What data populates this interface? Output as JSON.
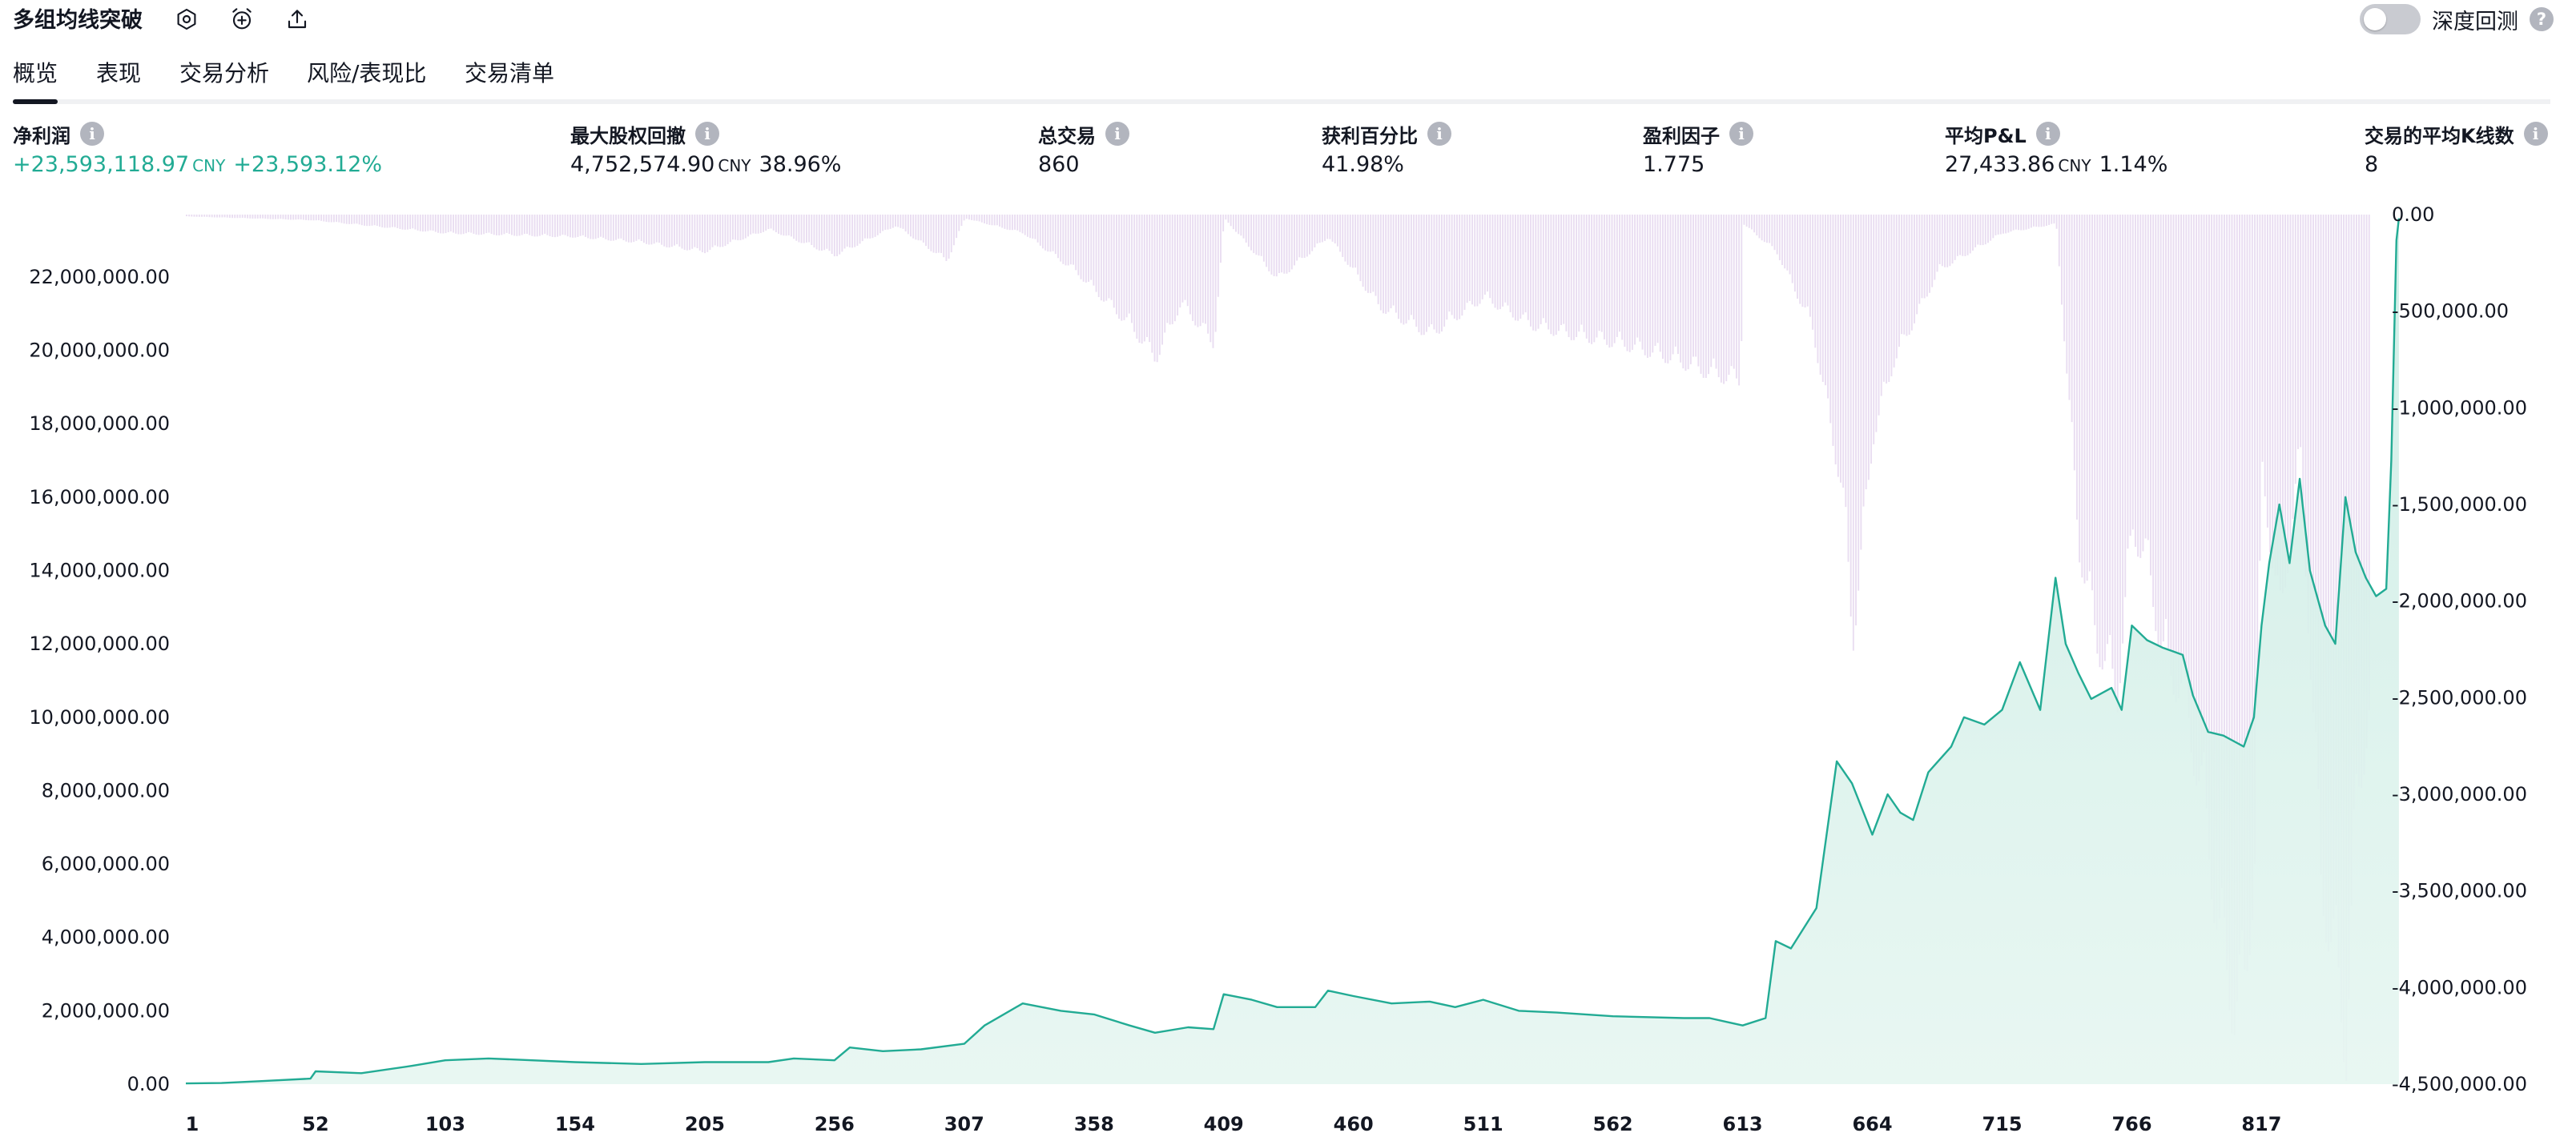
{
  "header": {
    "title": "多组均线突破",
    "deep_backtest_label": "深度回测",
    "deep_backtest_on": false
  },
  "tabs": [
    {
      "label": "概览",
      "active": true
    },
    {
      "label": "表现",
      "active": false
    },
    {
      "label": "交易分析",
      "active": false
    },
    {
      "label": "风险/表现比",
      "active": false
    },
    {
      "label": "交易清单",
      "active": false
    }
  ],
  "stats": {
    "net_profit": {
      "label": "净利润",
      "value": "+23,593,118.97",
      "unit": "CNY",
      "percent": "+23,593.12%"
    },
    "max_drawdown": {
      "label": "最大股权回撤",
      "value": "4,752,574.90",
      "unit": "CNY",
      "percent": "38.96%"
    },
    "total_trades": {
      "label": "总交易",
      "value": "860"
    },
    "percent_profitable": {
      "label": "获利百分比",
      "value": "41.98%"
    },
    "profit_factor": {
      "label": "盈利因子",
      "value": "1.775"
    },
    "avg_pnl": {
      "label": "平均P&L",
      "value": "27,433.86",
      "unit": "CNY",
      "percent": "1.14%"
    },
    "avg_bars": {
      "label": "交易的平均K线数",
      "value": "8"
    }
  },
  "colors": {
    "equity_line": "#22ab94",
    "equity_fill": "#e3f4ef",
    "drawdown_bar": "#e9ddf1",
    "drawdown_bar_overlap": "#d9dcec",
    "positive_text": "#22ab94"
  },
  "chart_data": {
    "type": "area",
    "x_tick_labels": [
      "1",
      "52",
      "103",
      "154",
      "205",
      "256",
      "307",
      "358",
      "409",
      "460",
      "511",
      "562",
      "613",
      "664",
      "715",
      "766",
      "817"
    ],
    "left_axis_labels": [
      "22,000,000.00",
      "20,000,000.00",
      "18,000,000.00",
      "16,000,000.00",
      "14,000,000.00",
      "12,000,000.00",
      "10,000,000.00",
      "8,000,000.00",
      "6,000,000.00",
      "4,000,000.00",
      "2,000,000.00",
      "0.00"
    ],
    "right_axis_labels": [
      "0.00",
      "-500,000.00",
      "-1,000,000.00",
      "-1,500,000.00",
      "-2,000,000.00",
      "-2,500,000.00",
      "-3,000,000.00",
      "-3,500,000.00",
      "-4,000,000.00",
      "-4,500,000.00"
    ],
    "left_ylim": [
      0,
      23700000
    ],
    "right_ylim": [
      -4500000,
      0
    ],
    "xlim": [
      1,
      860
    ],
    "series": [
      {
        "axis": "left",
        "points": [
          [
            1,
            20000
          ],
          [
            15,
            30000
          ],
          [
            30,
            80000
          ],
          [
            50,
            150000
          ],
          [
            52,
            350000
          ],
          [
            70,
            300000
          ],
          [
            90,
            500000
          ],
          [
            103,
            650000
          ],
          [
            120,
            700000
          ],
          [
            154,
            600000
          ],
          [
            180,
            550000
          ],
          [
            205,
            600000
          ],
          [
            230,
            600000
          ],
          [
            240,
            700000
          ],
          [
            256,
            650000
          ],
          [
            262,
            1000000
          ],
          [
            275,
            900000
          ],
          [
            290,
            950000
          ],
          [
            307,
            1100000
          ],
          [
            315,
            1600000
          ],
          [
            330,
            2200000
          ],
          [
            345,
            2000000
          ],
          [
            358,
            1900000
          ],
          [
            372,
            1600000
          ],
          [
            382,
            1400000
          ],
          [
            395,
            1550000
          ],
          [
            405,
            1500000
          ],
          [
            409,
            2450000
          ],
          [
            420,
            2300000
          ],
          [
            430,
            2100000
          ],
          [
            445,
            2100000
          ],
          [
            450,
            2550000
          ],
          [
            460,
            2400000
          ],
          [
            475,
            2200000
          ],
          [
            490,
            2250000
          ],
          [
            500,
            2100000
          ],
          [
            511,
            2300000
          ],
          [
            525,
            2000000
          ],
          [
            540,
            1950000
          ],
          [
            562,
            1850000
          ],
          [
            590,
            1800000
          ],
          [
            600,
            1800000
          ],
          [
            613,
            1600000
          ],
          [
            622,
            1800000
          ],
          [
            626,
            3900000
          ],
          [
            632,
            3700000
          ],
          [
            642,
            4800000
          ],
          [
            650,
            8800000
          ],
          [
            656,
            8200000
          ],
          [
            664,
            6800000
          ],
          [
            670,
            7900000
          ],
          [
            675,
            7400000
          ],
          [
            680,
            7200000
          ],
          [
            686,
            8500000
          ],
          [
            695,
            9200000
          ],
          [
            700,
            10000000
          ],
          [
            708,
            9800000
          ],
          [
            715,
            10200000
          ],
          [
            722,
            11500000
          ],
          [
            730,
            10200000
          ],
          [
            736,
            13800000
          ],
          [
            740,
            12000000
          ],
          [
            745,
            11200000
          ],
          [
            750,
            10500000
          ],
          [
            758,
            10800000
          ],
          [
            762,
            10200000
          ],
          [
            766,
            12500000
          ],
          [
            772,
            12100000
          ],
          [
            778,
            11900000
          ],
          [
            782,
            11800000
          ],
          [
            786,
            11700000
          ],
          [
            790,
            10600000
          ],
          [
            796,
            9600000
          ],
          [
            802,
            9500000
          ],
          [
            810,
            9200000
          ],
          [
            814,
            10000000
          ],
          [
            817,
            12500000
          ],
          [
            820,
            14200000
          ],
          [
            824,
            15800000
          ],
          [
            828,
            14200000
          ],
          [
            832,
            16500000
          ],
          [
            836,
            14000000
          ],
          [
            842,
            12500000
          ],
          [
            846,
            12000000
          ],
          [
            850,
            16000000
          ],
          [
            854,
            14500000
          ],
          [
            858,
            13800000
          ],
          [
            862,
            13300000
          ],
          [
            866,
            13500000
          ],
          [
            868,
            17000000
          ],
          [
            870,
            23000000
          ],
          [
            871,
            23600000
          ]
        ]
      },
      {
        "axis": "right",
        "points": [
          [
            1,
            -10000
          ],
          [
            50,
            -30000
          ],
          [
            103,
            -100000
          ],
          [
            154,
            -120000
          ],
          [
            180,
            -150000
          ],
          [
            205,
            -200000
          ],
          [
            230,
            -80000
          ],
          [
            256,
            -220000
          ],
          [
            280,
            -60000
          ],
          [
            300,
            -250000
          ],
          [
            307,
            -20000
          ],
          [
            330,
            -100000
          ],
          [
            350,
            -300000
          ],
          [
            372,
            -600000
          ],
          [
            382,
            -780000
          ],
          [
            392,
            -480000
          ],
          [
            405,
            -700000
          ],
          [
            409,
            -20000
          ],
          [
            430,
            -350000
          ],
          [
            450,
            -120000
          ],
          [
            470,
            -500000
          ],
          [
            490,
            -650000
          ],
          [
            511,
            -450000
          ],
          [
            530,
            -600000
          ],
          [
            545,
            -650000
          ],
          [
            565,
            -700000
          ],
          [
            585,
            -780000
          ],
          [
            600,
            -860000
          ],
          [
            612,
            -900000
          ],
          [
            613,
            -50000
          ],
          [
            626,
            -200000
          ],
          [
            640,
            -600000
          ],
          [
            652,
            -1500000
          ],
          [
            656,
            -2300000
          ],
          [
            664,
            -1200000
          ],
          [
            672,
            -800000
          ],
          [
            690,
            -300000
          ],
          [
            715,
            -100000
          ],
          [
            736,
            -50000
          ],
          [
            745,
            -1800000
          ],
          [
            752,
            -2300000
          ],
          [
            760,
            -2600000
          ],
          [
            766,
            -1700000
          ],
          [
            772,
            -1900000
          ],
          [
            778,
            -2400000
          ],
          [
            786,
            -2600000
          ],
          [
            794,
            -3200000
          ],
          [
            800,
            -3900000
          ],
          [
            806,
            -4300000
          ],
          [
            810,
            -4200000
          ],
          [
            814,
            -3500000
          ],
          [
            817,
            -1400000
          ],
          [
            824,
            -2200000
          ],
          [
            832,
            -1300000
          ],
          [
            840,
            -3600000
          ],
          [
            846,
            -4100000
          ],
          [
            850,
            -4500000
          ],
          [
            854,
            -3200000
          ],
          [
            860,
            -2600000
          ],
          [
            866,
            -3100000
          ],
          [
            869,
            -3900000
          ],
          [
            871,
            0
          ]
        ]
      }
    ]
  }
}
